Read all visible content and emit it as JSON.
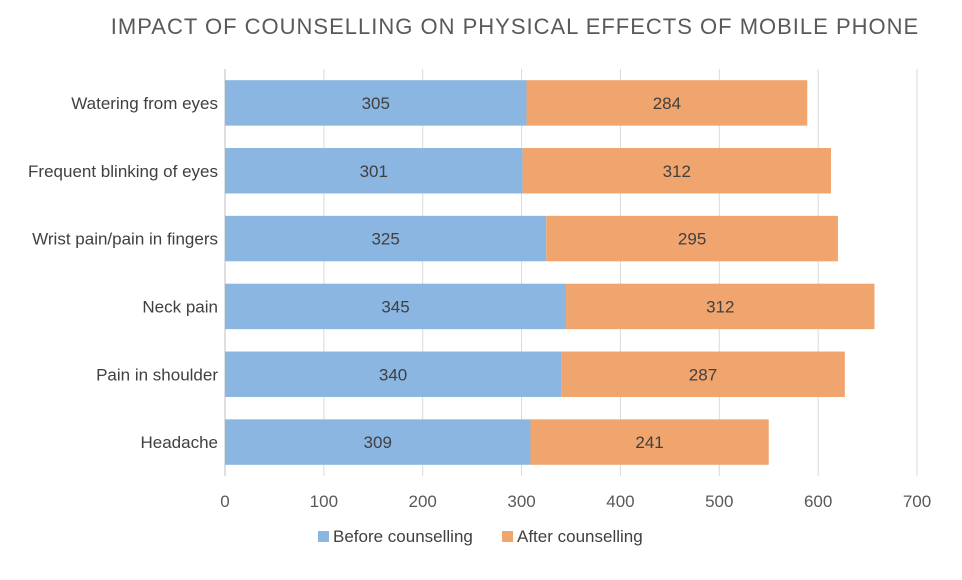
{
  "chart_data": {
    "type": "bar",
    "orientation": "horizontal",
    "stacked": true,
    "title": "IMPACT OF COUNSELLING ON PHYSICAL EFFECTS OF MOBILE PHONE",
    "categories": [
      "Watering from eyes",
      "Frequent blinking of eyes",
      "Wrist pain/pain in fingers",
      "Neck pain",
      "Pain in shoulder",
      "Headache"
    ],
    "series": [
      {
        "name": "Before counselling",
        "color": "#8ab6e1",
        "values": [
          305,
          301,
          325,
          345,
          340,
          309
        ]
      },
      {
        "name": "After counselling",
        "color": "#f0a46e",
        "values": [
          284,
          312,
          295,
          312,
          287,
          241
        ]
      }
    ],
    "xlim": [
      0,
      700
    ],
    "xticks": [
      0,
      100,
      200,
      300,
      400,
      500,
      600,
      700
    ],
    "grid": true,
    "legend_position": "bottom",
    "data_labels": true
  }
}
